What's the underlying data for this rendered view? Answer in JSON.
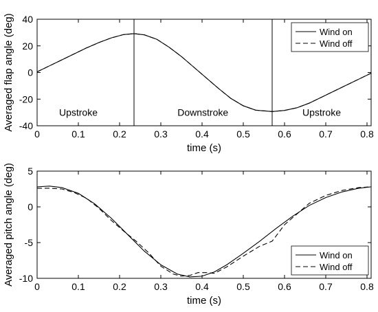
{
  "chart_data": [
    {
      "type": "line",
      "xlabel": "time (s)",
      "ylabel": "Averaged flap angle (deg)",
      "xlim": [
        0,
        0.81
      ],
      "ylim": [
        -40,
        40
      ],
      "xticks": [
        0,
        0.1,
        0.2,
        0.3,
        0.4,
        0.5,
        0.6,
        0.7,
        0.8
      ],
      "xtick_labels": [
        "0",
        "0.1",
        "0.2",
        "0.3",
        "0.4",
        "0.5",
        "0.6",
        "0.7",
        "0.8"
      ],
      "yticks": [
        -40,
        -20,
        0,
        20,
        40
      ],
      "ytick_labels": [
        "-40",
        "-20",
        "0",
        "20",
        "40"
      ],
      "grid": false,
      "legend_position": "top-right",
      "vlines": [
        0.235,
        0.57
      ],
      "annotations": [
        {
          "text": "Upstroke",
          "x": 0.1,
          "y": -30
        },
        {
          "text": "Downstroke",
          "x": 0.402,
          "y": -30
        },
        {
          "text": "Upstroke",
          "x": 0.69,
          "y": -30
        }
      ],
      "series": [
        {
          "name": "Wind on",
          "style": "solid",
          "color": "#000000",
          "x": [
            0,
            0.03,
            0.06,
            0.09,
            0.12,
            0.15,
            0.18,
            0.21,
            0.235,
            0.26,
            0.29,
            0.32,
            0.35,
            0.38,
            0.41,
            0.44,
            0.47,
            0.5,
            0.53,
            0.57,
            0.6,
            0.63,
            0.66,
            0.69,
            0.72,
            0.75,
            0.78,
            0.81
          ],
          "y": [
            0.5,
            5,
            9.5,
            14,
            18.5,
            22.5,
            26,
            28.5,
            29.2,
            28.3,
            25,
            19,
            12,
            4,
            -4,
            -12,
            -19.5,
            -25,
            -28.3,
            -29.3,
            -28.5,
            -26.5,
            -23,
            -18.5,
            -14,
            -9.5,
            -5,
            -0.5
          ]
        },
        {
          "name": "Wind off",
          "style": "dashed",
          "color": "#000000",
          "x": [
            0,
            0.03,
            0.06,
            0.09,
            0.12,
            0.15,
            0.18,
            0.21,
            0.235,
            0.26,
            0.29,
            0.32,
            0.35,
            0.38,
            0.41,
            0.44,
            0.47,
            0.5,
            0.53,
            0.57,
            0.6,
            0.63,
            0.66,
            0.69,
            0.72,
            0.75,
            0.78,
            0.81
          ],
          "y": [
            0.5,
            5,
            9.5,
            14,
            18.5,
            22.5,
            26,
            28.5,
            29.2,
            28.3,
            25,
            19,
            12,
            4,
            -4,
            -12,
            -19.5,
            -25,
            -28.3,
            -29.3,
            -28.5,
            -26.5,
            -23,
            -18.5,
            -14,
            -9.5,
            -5,
            -0.5
          ]
        }
      ]
    },
    {
      "type": "line",
      "xlabel": "time (s)",
      "ylabel": "Averaged pitch angle (deg)",
      "xlim": [
        0,
        0.81
      ],
      "ylim": [
        -10,
        5
      ],
      "xticks": [
        0,
        0.1,
        0.2,
        0.3,
        0.4,
        0.5,
        0.6,
        0.7,
        0.8
      ],
      "xtick_labels": [
        "0",
        "0.1",
        "0.2",
        "0.3",
        "0.4",
        "0.5",
        "0.6",
        "0.7",
        "0.8"
      ],
      "yticks": [
        -10,
        -5,
        0,
        5
      ],
      "ytick_labels": [
        "-10",
        "-5",
        "0",
        "5"
      ],
      "grid": false,
      "legend_position": "bottom-right",
      "vlines": [],
      "annotations": [],
      "series": [
        {
          "name": "Wind on",
          "style": "solid",
          "color": "#000000",
          "x": [
            0,
            0.03,
            0.06,
            0.1,
            0.14,
            0.18,
            0.22,
            0.26,
            0.3,
            0.34,
            0.37,
            0.4,
            0.43,
            0.46,
            0.5,
            0.54,
            0.58,
            0.62,
            0.66,
            0.7,
            0.74,
            0.78,
            0.81
          ],
          "y": [
            2.8,
            2.9,
            2.7,
            1.9,
            0.4,
            -1.6,
            -3.9,
            -6.2,
            -8.1,
            -9.4,
            -9.8,
            -9.7,
            -9.1,
            -8.1,
            -6.5,
            -4.8,
            -3.0,
            -1.3,
            0.2,
            1.3,
            2.1,
            2.6,
            2.8
          ]
        },
        {
          "name": "Wind off",
          "style": "dashed",
          "color": "#000000",
          "x": [
            0,
            0.03,
            0.06,
            0.09,
            0.12,
            0.15,
            0.18,
            0.21,
            0.24,
            0.27,
            0.3,
            0.33,
            0.35,
            0.37,
            0.39,
            0.41,
            0.43,
            0.46,
            0.5,
            0.54,
            0.57,
            0.6,
            0.63,
            0.66,
            0.7,
            0.74,
            0.78,
            0.81
          ],
          "y": [
            2.6,
            2.6,
            2.5,
            2.0,
            1.2,
            -0.2,
            -1.9,
            -3.4,
            -4.8,
            -6.4,
            -8.3,
            -9.4,
            -9.7,
            -9.6,
            -9.2,
            -9.2,
            -9.3,
            -8.4,
            -6.9,
            -5.5,
            -4.8,
            -2.5,
            -1.0,
            0.5,
            1.6,
            2.3,
            2.7,
            2.8
          ]
        }
      ]
    }
  ]
}
